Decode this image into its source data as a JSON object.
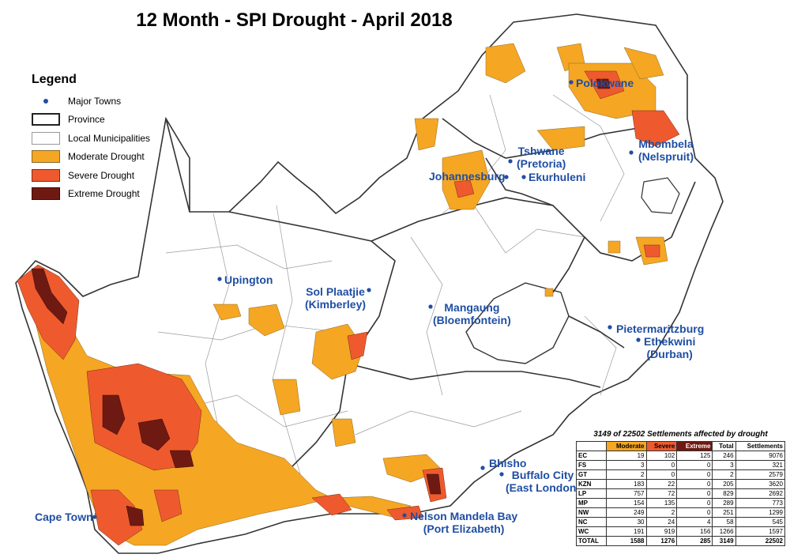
{
  "title": "12 Month - SPI Drought - April 2018",
  "legend": {
    "title": "Legend",
    "items": [
      {
        "label": "Major Towns"
      },
      {
        "label": "Province"
      },
      {
        "label": "Local Municipalities"
      },
      {
        "label": "Moderate Drought",
        "color": "#f5a623"
      },
      {
        "label": "Severe Drought",
        "color": "#ee5a2e"
      },
      {
        "label": "Extreme Drought",
        "color": "#6e1a12"
      }
    ]
  },
  "towns": {
    "polokwane": "Polokwane",
    "tshwane": "Tshwane",
    "pretoria": "(Pretoria)",
    "mbombela": "Mbombela",
    "nelspruit": "(Nelspruit)",
    "johannesburg": "Johannesburg",
    "ekurhuleni": "Ekurhuleni",
    "upington": "Upington",
    "sol_plaatjie": "Sol Plaatjie",
    "kimberley": "(Kimberley)",
    "mangaung": "Mangaung",
    "bloemfontein": "(Bloemfontein)",
    "pietermaritzburg": "Pietermaritzburg",
    "ethekwini": "Ethekwini",
    "durban": "(Durban)",
    "bhisho": "Bhisho",
    "buffalo_city": "Buffalo City",
    "east_london": "(East London)",
    "cape_town": "Cape Town",
    "nelson_mandela_bay": "Nelson Mandela Bay",
    "port_elizabeth": "(Port Elizabeth)"
  },
  "colors": {
    "moderate": "#f5a623",
    "severe": "#ee5a2e",
    "extreme": "#6e1a12",
    "town": "#1f4ea3"
  },
  "summary": {
    "title": "3149 of 22502 Settlements affected by drought",
    "headers": [
      "",
      "Moderate",
      "Severe",
      "Extreme",
      "Total",
      "Settlements"
    ],
    "rows": [
      [
        "EC",
        "19",
        "102",
        "125",
        "246",
        "9076"
      ],
      [
        "FS",
        "3",
        "0",
        "0",
        "3",
        "321"
      ],
      [
        "GT",
        "2",
        "0",
        "0",
        "2",
        "2579"
      ],
      [
        "KZN",
        "183",
        "22",
        "0",
        "205",
        "3620"
      ],
      [
        "LP",
        "757",
        "72",
        "0",
        "829",
        "2692"
      ],
      [
        "MP",
        "154",
        "135",
        "0",
        "289",
        "773"
      ],
      [
        "NW",
        "249",
        "2",
        "0",
        "251",
        "1299"
      ],
      [
        "NC",
        "30",
        "24",
        "4",
        "58",
        "545"
      ],
      [
        "WC",
        "191",
        "919",
        "156",
        "1266",
        "1597"
      ]
    ],
    "total": [
      "TOTAL",
      "1588",
      "1276",
      "285",
      "3149",
      "22502"
    ]
  }
}
